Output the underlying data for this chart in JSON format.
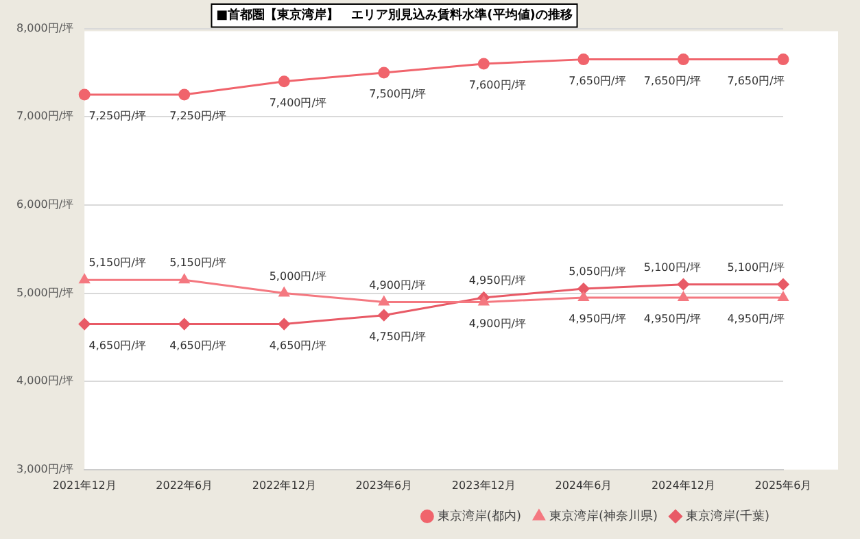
{
  "chart_data": {
    "type": "line",
    "title": "■首都圏【東京湾岸】　エリア別見込み賃料水準(平均値)の推移",
    "categories": [
      "2021年12月",
      "2022年6月",
      "2022年12月",
      "2023年6月",
      "2023年12月",
      "2024年6月",
      "2024年12月",
      "2025年6月"
    ],
    "series": [
      {
        "name": "東京湾岸(都内)",
        "color": "#f0646c",
        "marker": "circle",
        "values": [
          7250,
          7250,
          7400,
          7500,
          7600,
          7650,
          7650,
          7650
        ],
        "value_labels": [
          "7,250円/坪",
          "7,250円/坪",
          "7,400円/坪",
          "7,500円/坪",
          "7,600円/坪",
          "7,650円/坪",
          "7,650円/坪",
          "7,650円/坪"
        ]
      },
      {
        "name": "東京湾岸(神奈川県)",
        "color": "#f47880",
        "marker": "triangle",
        "values": [
          5150,
          5150,
          5000,
          4900,
          4900,
          4950,
          4950,
          4950
        ],
        "value_labels": [
          "5,150円/坪",
          "5,150円/坪",
          "5,000円/坪",
          "4,900円/坪",
          "4,900円/坪",
          "4,950円/坪",
          "4,950円/坪",
          "4,950円/坪"
        ]
      },
      {
        "name": "東京湾岸(千葉)",
        "color": "#e85a66",
        "marker": "diamond",
        "values": [
          4650,
          4650,
          4650,
          4750,
          4950,
          5050,
          5100,
          5100
        ],
        "value_labels": [
          "4,650円/坪",
          "4,650円/坪",
          "4,650円/坪",
          "4,750円/坪",
          "4,950円/坪",
          "5,050円/坪",
          "5,100円/坪",
          "5,100円/坪"
        ]
      }
    ],
    "ylim": [
      3000,
      8000
    ],
    "yticks": [
      {
        "value": 3000,
        "label": "3,000円/坪"
      },
      {
        "value": 4000,
        "label": "4,000円/坪"
      },
      {
        "value": 5000,
        "label": "5,000円/坪"
      },
      {
        "value": 6000,
        "label": "6,000円/坪"
      },
      {
        "value": 7000,
        "label": "7,000円/坪"
      },
      {
        "value": 8000,
        "label": "8,000円/坪"
      }
    ],
    "grid": "y",
    "legend": "bottom right"
  }
}
